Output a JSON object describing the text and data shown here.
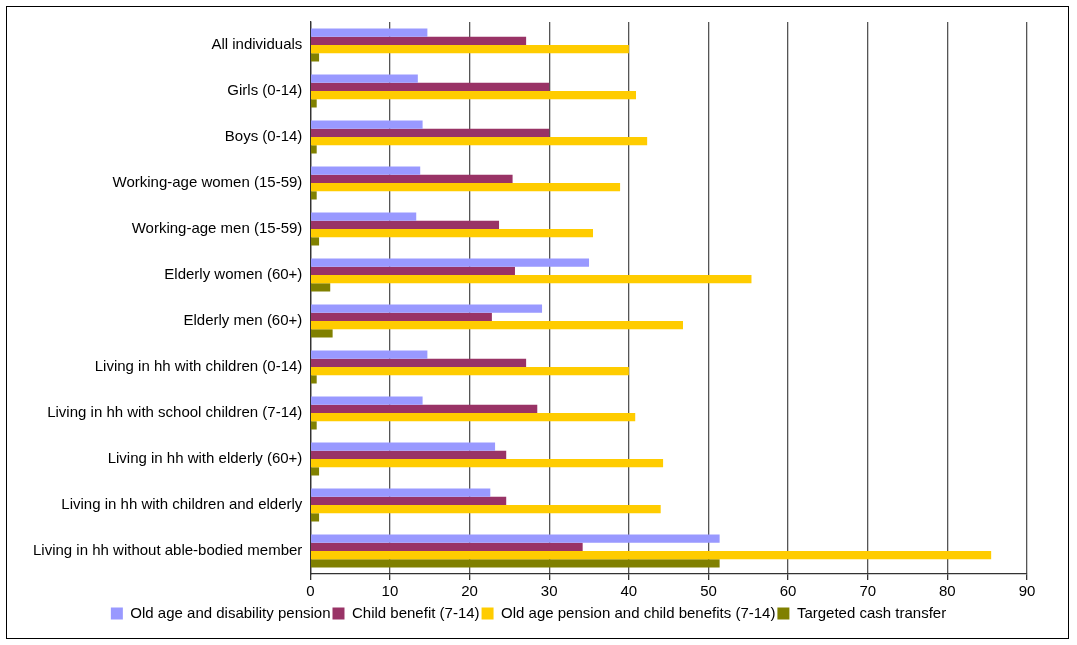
{
  "chart_data": {
    "type": "bar",
    "orientation": "horizontal",
    "categories": [
      "All individuals",
      "Girls (0-14)",
      "Boys (0-14)",
      "Working-age women (15-59)",
      "Working-age men (15-59)",
      "Elderly women (60+)",
      "Elderly men (60+)",
      "Living in hh with children (0-14)",
      "Living in hh with school children (7-14)",
      "Living in hh with elderly (60+)",
      "Living in hh with children and elderly",
      "Living in hh without able-bodied member"
    ],
    "series": [
      {
        "name": "Old age and disability pension",
        "color": "#9999ff",
        "values": [
          14.7,
          13.5,
          14.1,
          13.8,
          13.3,
          35.0,
          29.1,
          14.7,
          14.1,
          23.2,
          22.6,
          51.4
        ]
      },
      {
        "name": "Child benefit (7-14)",
        "color": "#993366",
        "values": [
          27.1,
          30.0,
          30.0,
          25.4,
          23.7,
          25.7,
          22.8,
          27.1,
          28.5,
          24.6,
          24.6,
          34.2
        ]
      },
      {
        "name": "Old age pension and child benefits (7-14)",
        "color": "#ffcc00",
        "values": [
          40.0,
          40.9,
          42.3,
          38.9,
          35.5,
          55.4,
          46.8,
          40.0,
          40.8,
          44.3,
          44.0,
          85.5
        ]
      },
      {
        "name": "Targeted cash transfer",
        "color": "#808000",
        "values": [
          1.1,
          0.8,
          0.8,
          0.8,
          1.1,
          2.5,
          2.8,
          0.8,
          0.8,
          1.1,
          1.1,
          51.4
        ]
      }
    ],
    "xlim": [
      0,
      90
    ],
    "xticks": [
      0,
      10,
      20,
      30,
      40,
      50,
      60,
      70,
      80,
      90
    ],
    "grid": "x",
    "legend": "bottom"
  }
}
